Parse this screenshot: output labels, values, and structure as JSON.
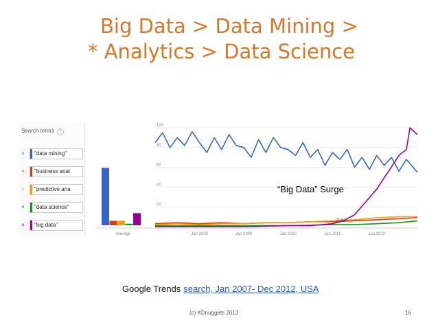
{
  "slide": {
    "title_line1": "Big Data > Data Mining >",
    "title_line2": "* Analytics > Data Science",
    "annotation": "“Big Data” Surge",
    "caption_prefix": "Google Trends",
    "caption_link": "search, Jan 2007- Dec 2012, USA",
    "footer_left": "(c) KDnuggets 2013",
    "footer_right": "16"
  },
  "terms_panel": {
    "header": "Search terms",
    "help_glyph": "?",
    "remove_glyph": "×"
  },
  "colors": {
    "title": "#d8772a",
    "data_mining": "#3366cc",
    "business_analytics": "#dc3912",
    "predictive_analytics": "#ff9900",
    "data_science": "#109618",
    "big_data": "#990099"
  },
  "chart_data": {
    "type": "line",
    "y_ticks": [
      "100",
      "80",
      "60",
      "40",
      "20"
    ],
    "ylim": [
      0,
      100
    ],
    "x_ticks": [
      "Jan 2008",
      "Jan 2009",
      "Jan 2010",
      "Jan 2011",
      "Jan 2012"
    ],
    "xlim": [
      "2007-01",
      "2012-12"
    ],
    "note_label": "Note",
    "average_label": "Average",
    "averages": [
      {
        "term": "\"data mining\"",
        "value": 76
      },
      {
        "term": "\"business anal",
        "value": 6
      },
      {
        "term": "\"predictive ana",
        "value": 6
      },
      {
        "term": "\"data science\"",
        "value": 2
      },
      {
        "term": "\"big data\"",
        "value": 16
      }
    ],
    "series": [
      {
        "name": "\"data mining\"",
        "x": [
          "2007-01",
          "2007-03",
          "2007-05",
          "2007-07",
          "2007-09",
          "2007-11",
          "2008-01",
          "2008-03",
          "2008-05",
          "2008-07",
          "2008-09",
          "2008-11",
          "2009-01",
          "2009-03",
          "2009-05",
          "2009-07",
          "2009-09",
          "2009-11",
          "2010-01",
          "2010-03",
          "2010-05",
          "2010-07",
          "2010-09",
          "2010-11",
          "2011-01",
          "2011-03",
          "2011-05",
          "2011-07",
          "2011-09",
          "2011-11",
          "2012-01",
          "2012-03",
          "2012-05",
          "2012-07",
          "2012-09",
          "2012-12"
        ],
        "y": [
          85,
          95,
          80,
          90,
          82,
          96,
          85,
          75,
          90,
          78,
          93,
          82,
          80,
          70,
          88,
          75,
          90,
          80,
          78,
          72,
          85,
          70,
          78,
          62,
          75,
          68,
          78,
          60,
          70,
          58,
          72,
          62,
          70,
          56,
          68,
          55
        ]
      },
      {
        "name": "\"business anal",
        "x": [
          "2007-01",
          "2007-07",
          "2008-01",
          "2008-07",
          "2009-01",
          "2009-07",
          "2010-01",
          "2010-07",
          "2011-01",
          "2011-07",
          "2012-01",
          "2012-07",
          "2012-12"
        ],
        "y": [
          3,
          4,
          3,
          4,
          3,
          4,
          4,
          5,
          5,
          6,
          7,
          8,
          9
        ]
      },
      {
        "name": "\"predictive ana",
        "x": [
          "2007-01",
          "2007-07",
          "2008-01",
          "2008-07",
          "2009-01",
          "2009-07",
          "2010-01",
          "2010-07",
          "2011-01",
          "2011-07",
          "2012-01",
          "2012-07",
          "2012-12"
        ],
        "y": [
          2,
          3,
          2,
          3,
          3,
          4,
          4,
          5,
          6,
          7,
          9,
          10,
          10
        ]
      },
      {
        "name": "\"data science\"",
        "x": [
          "2007-01",
          "2008-01",
          "2009-01",
          "2010-01",
          "2011-01",
          "2011-07",
          "2012-01",
          "2012-07",
          "2012-12"
        ],
        "y": [
          1,
          1,
          1,
          1,
          2,
          2,
          3,
          4,
          6
        ]
      },
      {
        "name": "\"big data\"",
        "x": [
          "2007-01",
          "2008-01",
          "2009-01",
          "2010-01",
          "2010-07",
          "2011-01",
          "2011-04",
          "2011-07",
          "2011-10",
          "2012-01",
          "2012-04",
          "2012-07",
          "2012-09",
          "2012-10",
          "2012-12"
        ],
        "y": [
          0,
          0,
          0,
          1,
          1,
          3,
          6,
          12,
          25,
          38,
          55,
          72,
          78,
          100,
          93
        ]
      }
    ]
  }
}
